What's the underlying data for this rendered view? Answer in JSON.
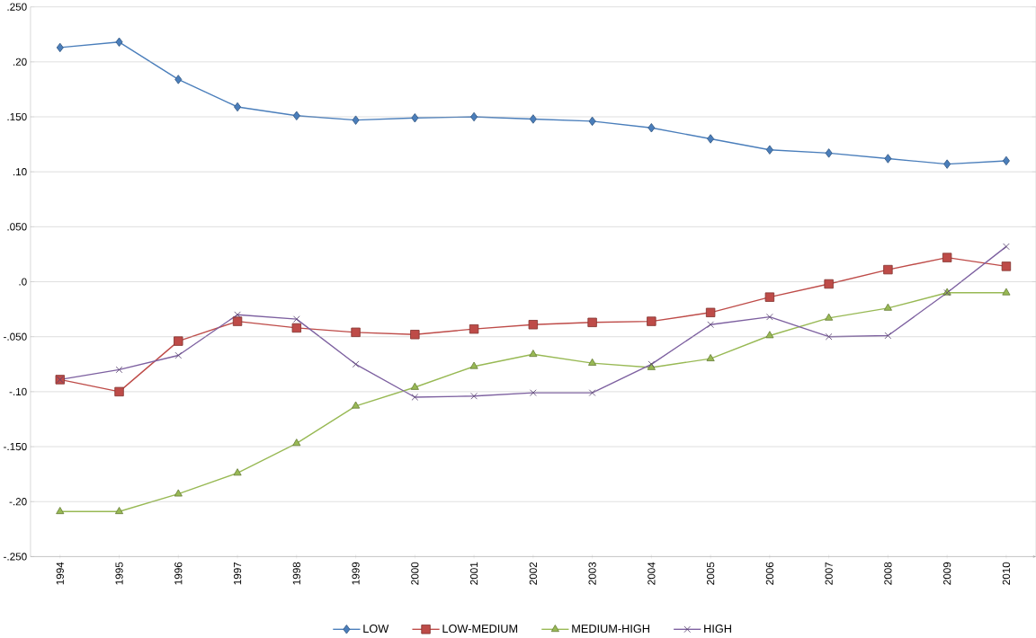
{
  "chart_data": {
    "type": "line",
    "categories": [
      "1994",
      "1995",
      "1996",
      "1997",
      "1998",
      "1999",
      "2000",
      "2001",
      "2002",
      "2003",
      "2004",
      "2005",
      "2006",
      "2007",
      "2008",
      "2009",
      "2010"
    ],
    "series": [
      {
        "name": "LOW",
        "color": "#4a7ebb",
        "marker": "diamond",
        "values": [
          0.213,
          0.218,
          0.184,
          0.159,
          0.151,
          0.147,
          0.149,
          0.15,
          0.148,
          0.146,
          0.14,
          0.13,
          0.12,
          0.117,
          0.112,
          0.107,
          0.11
        ]
      },
      {
        "name": "LOW-MEDIUM",
        "color": "#be4b48",
        "marker": "square",
        "values": [
          -0.089,
          -0.1,
          -0.054,
          -0.036,
          -0.042,
          -0.046,
          -0.048,
          -0.043,
          -0.039,
          -0.037,
          -0.036,
          -0.028,
          -0.014,
          -0.002,
          0.011,
          0.022,
          0.014
        ]
      },
      {
        "name": "MEDIUM-HIGH",
        "color": "#98b954",
        "marker": "triangle",
        "values": [
          -0.209,
          -0.209,
          -0.193,
          -0.174,
          -0.147,
          -0.113,
          -0.096,
          -0.077,
          -0.066,
          -0.074,
          -0.078,
          -0.07,
          -0.049,
          -0.033,
          -0.024,
          -0.01,
          -0.01
        ]
      },
      {
        "name": "HIGH",
        "color": "#7d60a0",
        "marker": "cross",
        "values": [
          -0.089,
          -0.08,
          -0.067,
          -0.03,
          -0.034,
          -0.075,
          -0.105,
          -0.104,
          -0.101,
          -0.101,
          -0.075,
          -0.039,
          -0.032,
          -0.05,
          -0.049,
          -0.01,
          0.032
        ]
      }
    ],
    "ylim": [
      -0.25,
      0.25
    ],
    "yticks": [
      {
        "value": 0.25,
        "label": ".250"
      },
      {
        "value": 0.2,
        "label": ".20"
      },
      {
        "value": 0.15,
        "label": ".150"
      },
      {
        "value": 0.1,
        "label": ".10"
      },
      {
        "value": 0.05,
        "label": ".050"
      },
      {
        "value": 0,
        "label": ".0"
      },
      {
        "value": -0.05,
        "label": "-.050"
      },
      {
        "value": -0.1,
        "label": "-.10"
      },
      {
        "value": -0.15,
        "label": "-.150"
      },
      {
        "value": -0.2,
        "label": "-.20"
      },
      {
        "value": -0.25,
        "label": "-.250"
      }
    ],
    "grid": "y",
    "legend": "bottom"
  }
}
